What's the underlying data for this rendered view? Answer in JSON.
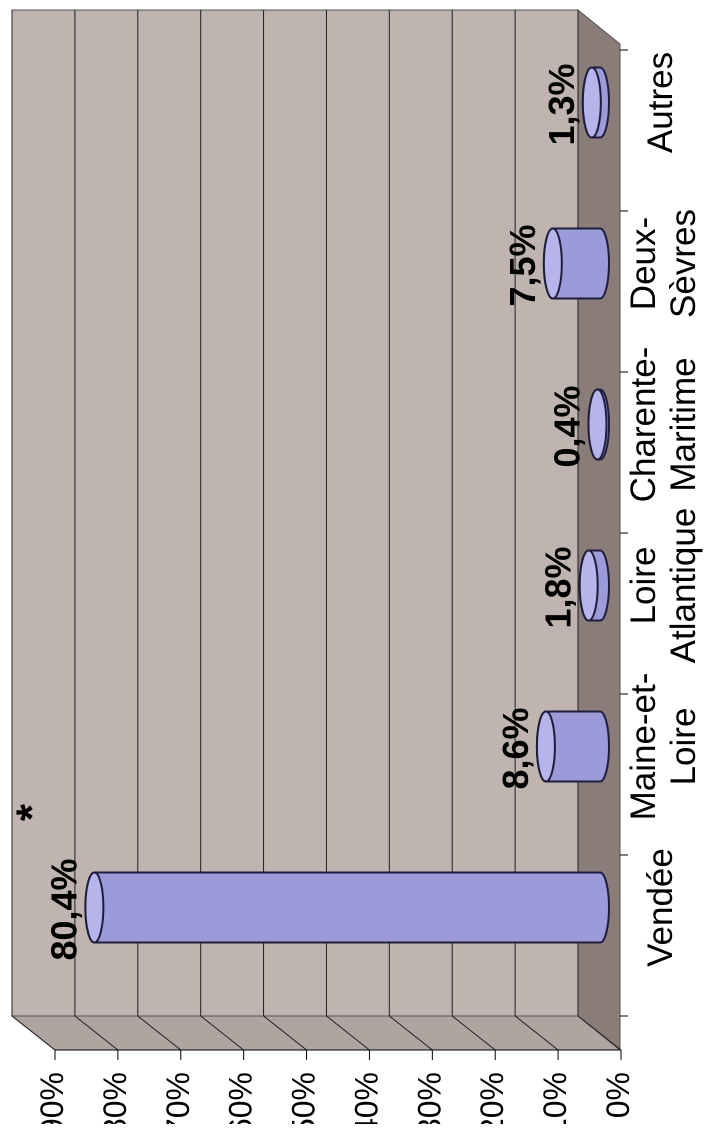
{
  "chart_data": {
    "type": "bar",
    "categories": [
      "Vendée",
      "Maine-et-\nLoire",
      "Loire\nAtlantique",
      "Charente-\nMaritime",
      "Deux-\nSèvres",
      "Autres"
    ],
    "values": [
      80.4,
      8.6,
      1.8,
      0.4,
      7.5,
      1.3
    ],
    "data_labels": [
      "80,4%",
      "8,6%",
      "1,8%",
      "0,4%",
      "7,5%",
      "1,3%"
    ],
    "annotations": [
      {
        "category": "Vendée",
        "text": "*"
      }
    ],
    "y_ticks": [
      "0%",
      "10%",
      "20%",
      "30%",
      "40%",
      "50%",
      "60%",
      "70%",
      "80%",
      "90%"
    ],
    "ylim": [
      0,
      90
    ],
    "grid": true,
    "rotated": "90deg-counterclockwise",
    "bar_style": "3d-cylinder",
    "title": "",
    "xlabel": "",
    "ylabel": "",
    "colors": {
      "bar_fill": "#9c9ad8",
      "bar_fill_light": "#b6b4ea",
      "bar_stroke": "#1e1e3c",
      "wall": "#c0b4b0",
      "floor": "#8a7c78",
      "side": "#b0a4a0",
      "grid": "#202020"
    }
  }
}
